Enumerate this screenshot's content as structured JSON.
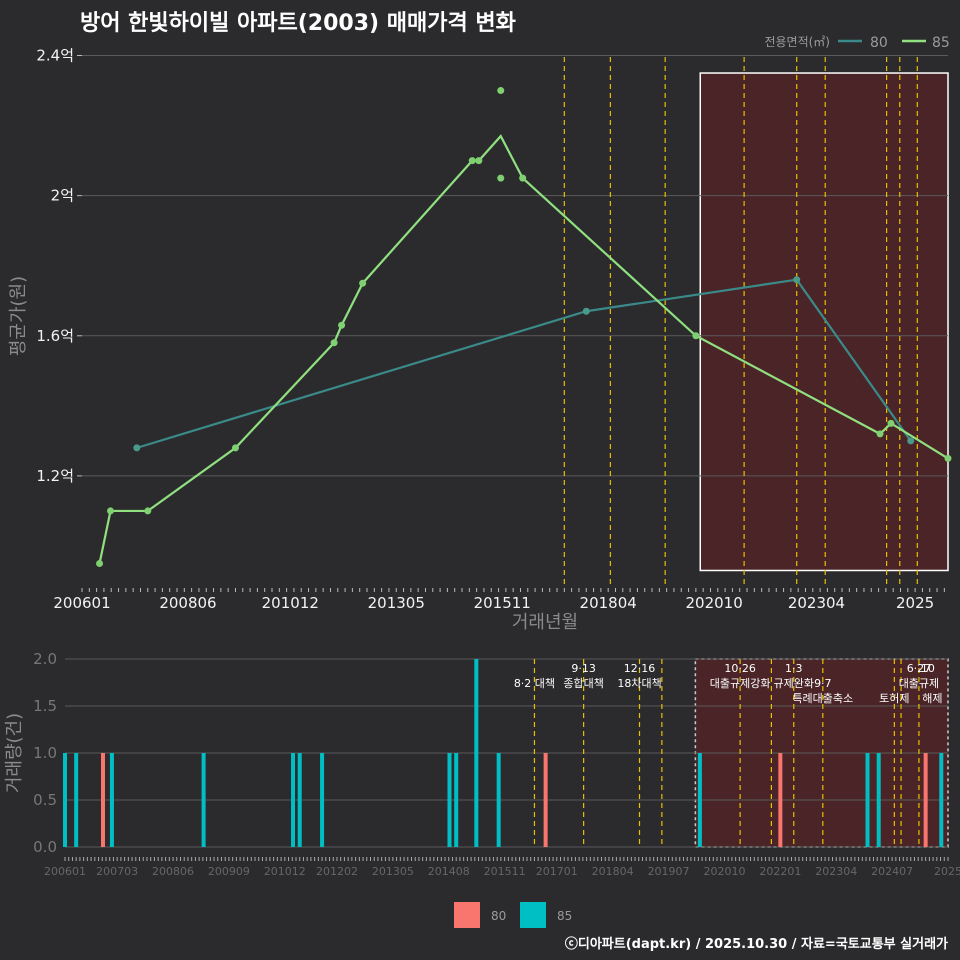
{
  "title": "방어 한빛하이빌 아파트(2003) 매매가격 변화",
  "footer": "ⓒ디아파트(dapt.kr) / 2025.10.30 / 자료=국토교통부 실거래가",
  "colors": {
    "background": "#2b2b2d",
    "grid": "#5a5a5a",
    "s80_line": "#3b8a8a",
    "s85_line": "#90e080",
    "policy_line": "#e8c000",
    "highlight_fill": "#4a2426",
    "bar80": "#f8766d",
    "bar85": "#00bfc4"
  },
  "chart_data": [
    {
      "type": "line",
      "title": "방어 한빛하이빌 아파트(2003) 매매가격 변화",
      "xlabel": "거래년월",
      "ylabel": "평균가(원)",
      "xlim": [
        2006.0,
        2025.75
      ],
      "ylim": [
        0.88,
        2.43
      ],
      "y_unit": "억",
      "x_ticks": [
        {
          "x": 2006.0,
          "label": "200601"
        },
        {
          "x": 2008.4167,
          "label": "200806"
        },
        {
          "x": 2010.75,
          "label": "201012"
        },
        {
          "x": 2013.1667,
          "label": "201305"
        },
        {
          "x": 2015.5833,
          "label": "201511"
        },
        {
          "x": 2018.0,
          "label": "201804"
        },
        {
          "x": 2020.4167,
          "label": "202010"
        },
        {
          "x": 2022.75,
          "label": "202304"
        },
        {
          "x": 2025.0,
          "label": "2025"
        }
      ],
      "y_ticks": [
        {
          "y": 1.2,
          "label": "1.2억"
        },
        {
          "y": 1.6,
          "label": "1.6억"
        },
        {
          "y": 2.0,
          "label": "2억"
        },
        {
          "y": 2.4,
          "label": "2.4억"
        }
      ],
      "legend": {
        "title": "전용면적(㎡)",
        "position": "top-right",
        "entries": [
          "80",
          "85"
        ]
      },
      "series": [
        {
          "name": "80",
          "line_x": [
            2007.25,
            2017.5,
            2022.3,
            2024.9
          ],
          "line_y": [
            1.28,
            1.67,
            1.76,
            1.3
          ],
          "points_x": [
            2007.25,
            2017.5,
            2022.3,
            2024.9
          ],
          "points_y": [
            1.28,
            1.67,
            1.76,
            1.3
          ]
        },
        {
          "name": "85",
          "line_x": [
            2006.4,
            2006.65,
            2007.5,
            2009.5,
            2011.75,
            2011.92,
            2012.4,
            2014.9,
            2015.05,
            2015.55,
            2016.05,
            2020.0,
            2024.2,
            2024.45,
            2025.75
          ],
          "line_y": [
            0.95,
            1.1,
            1.1,
            1.28,
            1.58,
            1.63,
            1.75,
            2.1,
            2.1,
            2.17,
            2.05,
            1.6,
            1.32,
            1.35,
            1.25
          ],
          "points_x": [
            2006.4,
            2006.65,
            2007.5,
            2009.5,
            2011.75,
            2011.92,
            2012.4,
            2014.9,
            2015.05,
            2015.55,
            2015.55,
            2016.05,
            2020.0,
            2024.2,
            2024.45,
            2025.75
          ],
          "points_y": [
            0.95,
            1.1,
            1.1,
            1.28,
            1.58,
            1.63,
            1.75,
            2.1,
            2.1,
            2.3,
            2.05,
            2.05,
            1.6,
            1.32,
            1.35,
            1.25
          ]
        }
      ],
      "policy_lines_x": [
        2017.0,
        2018.05,
        2019.3,
        2021.1,
        2022.3,
        2022.95,
        2024.35,
        2024.65,
        2025.05
      ],
      "highlight_x": [
        2020.1,
        2025.75
      ],
      "highlight_y": [
        0.93,
        2.35
      ]
    },
    {
      "type": "bar",
      "ylabel": "거래량(건)",
      "xlim": [
        2006.0,
        2025.75
      ],
      "ylim": [
        0,
        2.0
      ],
      "y_ticks": [
        {
          "y": 0.0,
          "label": "0.0"
        },
        {
          "y": 0.5,
          "label": "0.5"
        },
        {
          "y": 1.0,
          "label": "1.0"
        },
        {
          "y": 1.5,
          "label": "1.5"
        },
        {
          "y": 2.0,
          "label": "2.0"
        }
      ],
      "x_ticks": [
        {
          "x": 2006.0,
          "label": "200601"
        },
        {
          "x": 2007.1667,
          "label": "200703"
        },
        {
          "x": 2008.4167,
          "label": "200806"
        },
        {
          "x": 2009.6667,
          "label": "200909"
        },
        {
          "x": 2010.9167,
          "label": "201012"
        },
        {
          "x": 2012.0833,
          "label": "201202"
        },
        {
          "x": 2013.3333,
          "label": "201305"
        },
        {
          "x": 2014.5833,
          "label": "201408"
        },
        {
          "x": 2015.8333,
          "label": "201511"
        },
        {
          "x": 2017.0,
          "label": "201701"
        },
        {
          "x": 2018.25,
          "label": "201804"
        },
        {
          "x": 2019.5,
          "label": "201907"
        },
        {
          "x": 2020.75,
          "label": "202010"
        },
        {
          "x": 2022.0,
          "label": "202201"
        },
        {
          "x": 2023.25,
          "label": "202304"
        },
        {
          "x": 2024.5,
          "label": "202407"
        },
        {
          "x": 2025.75,
          "label": "2025"
        }
      ],
      "legend": {
        "position": "bottom",
        "entries": [
          "80",
          "85"
        ]
      },
      "series": [
        {
          "name": "80",
          "x": [
            2006.85,
            2016.75,
            2022.0,
            2025.25
          ],
          "values": [
            1,
            1,
            1,
            1
          ]
        },
        {
          "name": "85",
          "x": [
            2006.0,
            2006.25,
            2007.05,
            2009.1,
            2011.1,
            2011.25,
            2011.75,
            2014.6,
            2014.75,
            2015.2,
            2015.7,
            2020.2,
            2023.95,
            2024.2,
            2025.6
          ],
          "values": [
            1,
            1,
            1,
            1,
            1,
            1,
            1,
            1,
            1,
            2,
            1,
            1,
            1,
            1,
            1
          ]
        }
      ],
      "policy_lines_x": [
        2016.5,
        2017.6,
        2018.85,
        2019.35,
        2021.1,
        2021.8,
        2022.3,
        2022.95,
        2024.55,
        2024.7,
        2025.1
      ],
      "highlight_x": [
        2020.1,
        2025.75
      ],
      "policy_labels": [
        {
          "x": 2016.5,
          "row": 1,
          "text": "8·2 대책"
        },
        {
          "x": 2017.6,
          "row": 0,
          "text": "9·13"
        },
        {
          "x": 2017.6,
          "row": 1,
          "text": "종합대책"
        },
        {
          "x": 2018.85,
          "row": 0,
          "text": "12·16"
        },
        {
          "x": 2018.85,
          "row": 1,
          "text": "18차대책"
        },
        {
          "x": 2021.1,
          "row": 0,
          "text": "10·26"
        },
        {
          "x": 2021.1,
          "row": 1,
          "text": "대출규제강화"
        },
        {
          "x": 2022.3,
          "row": 0,
          "text": "1·3"
        },
        {
          "x": 2022.3,
          "row": 1,
          "text": "규제완화"
        },
        {
          "x": 2022.95,
          "row": 1,
          "text": "9·7"
        },
        {
          "x": 2022.95,
          "row": 2,
          "text": "특례대출축소"
        },
        {
          "x": 2024.55,
          "row": 2,
          "text": "토허제"
        },
        {
          "x": 2025.1,
          "row": 0,
          "text": "6·27"
        },
        {
          "x": 2025.3,
          "row": 0,
          "text": "10"
        },
        {
          "x": 2025.1,
          "row": 1,
          "text": "대출규제"
        },
        {
          "x": 2025.4,
          "row": 2,
          "text": "해제"
        }
      ]
    }
  ]
}
